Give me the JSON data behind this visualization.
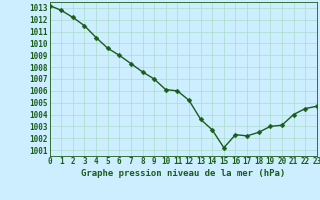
{
  "x": [
    0,
    1,
    2,
    3,
    4,
    5,
    6,
    7,
    8,
    9,
    10,
    11,
    12,
    13,
    14,
    15,
    16,
    17,
    18,
    19,
    20,
    21,
    22,
    23
  ],
  "y": [
    1013.2,
    1012.8,
    1012.2,
    1011.5,
    1010.5,
    1009.6,
    1009.0,
    1008.3,
    1007.6,
    1007.0,
    1006.1,
    1006.0,
    1005.2,
    1003.6,
    1002.7,
    1001.2,
    1002.3,
    1002.2,
    1002.5,
    1003.0,
    1003.1,
    1004.0,
    1004.5,
    1004.7
  ],
  "line_color": "#1a5c1a",
  "marker_color": "#1a5c1a",
  "bg_color": "#cceeff",
  "grid_color": "#aaddcc",
  "xlabel": "Graphe pression niveau de la mer (hPa)",
  "xlabel_color": "#1a5c1a",
  "tick_color": "#1a5c1a",
  "ylim": [
    1000.5,
    1013.5
  ],
  "xlim": [
    0,
    23
  ],
  "yticks": [
    1001,
    1002,
    1003,
    1004,
    1005,
    1006,
    1007,
    1008,
    1009,
    1010,
    1011,
    1012,
    1013
  ],
  "xticks": [
    0,
    1,
    2,
    3,
    4,
    5,
    6,
    7,
    8,
    9,
    10,
    11,
    12,
    13,
    14,
    15,
    16,
    17,
    18,
    19,
    20,
    21,
    22,
    23
  ],
  "line_width": 1.0,
  "marker_size": 2.5,
  "tick_fontsize": 5.5,
  "xlabel_fontsize": 6.5
}
